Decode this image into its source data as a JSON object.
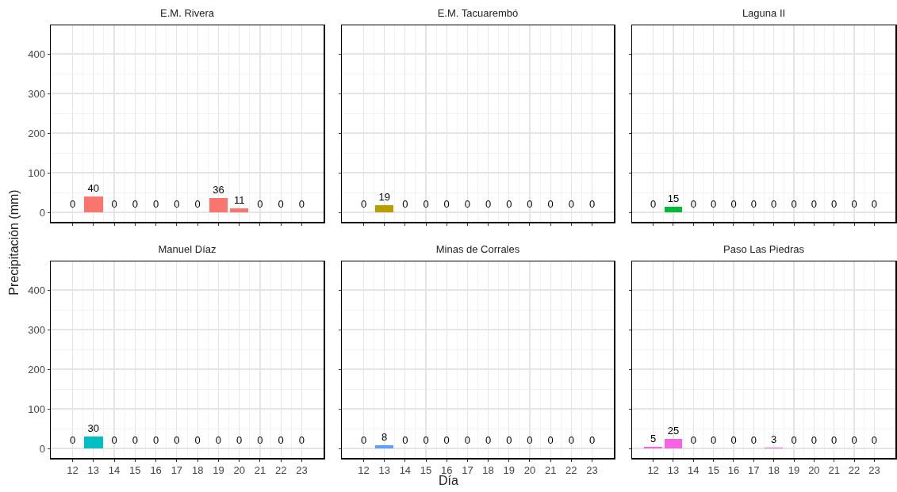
{
  "chart_data": [
    {
      "type": "bar",
      "title": "E.M. Rivera",
      "ylabel": "Precipitación (mm)",
      "x": [
        12,
        13,
        14,
        15,
        16,
        17,
        18,
        19,
        20,
        21,
        22,
        23
      ],
      "values": [
        0,
        40,
        0,
        0,
        0,
        0,
        0,
        36,
        11,
        0,
        0,
        0
      ],
      "color": "#f8766d",
      "xlim": [
        10.95,
        24.05
      ],
      "xticks": [
        12,
        13,
        14,
        15,
        16,
        17,
        18,
        19,
        20,
        21,
        22,
        23
      ],
      "ylim": [
        -24,
        472
      ],
      "yticks": [
        0,
        100,
        200,
        300,
        400
      ],
      "grid": true,
      "data_labels": true,
      "tick_labels": "y"
    },
    {
      "type": "bar",
      "title": "E.M. Tacuarembó",
      "x": [
        12,
        13,
        14,
        15,
        16,
        17,
        18,
        19,
        20,
        21,
        22,
        23
      ],
      "values": [
        0,
        19,
        0,
        0,
        0,
        0,
        0,
        0,
        0,
        0,
        0,
        0
      ],
      "color": "#b79f00",
      "xlim": [
        10.95,
        24.05
      ],
      "xticks": [
        12,
        13,
        14,
        15,
        16,
        17,
        18,
        19,
        20,
        21,
        22,
        23
      ],
      "ylim": [
        -24,
        472
      ],
      "yticks": [
        0,
        100,
        200,
        300,
        400
      ],
      "grid": true,
      "data_labels": true,
      "tick_labels": false
    },
    {
      "type": "bar",
      "title": "Laguna II",
      "x": [
        12,
        13,
        14,
        15,
        16,
        17,
        18,
        19,
        20,
        21,
        22,
        23
      ],
      "values": [
        0,
        15,
        0,
        0,
        0,
        0,
        0,
        0,
        0,
        0,
        0,
        0
      ],
      "color": "#00ba38",
      "xlim": [
        10.95,
        24.05
      ],
      "xticks": [
        12,
        13,
        14,
        15,
        16,
        17,
        18,
        19,
        20,
        21,
        22,
        23
      ],
      "ylim": [
        -24,
        472
      ],
      "yticks": [
        0,
        100,
        200,
        300,
        400
      ],
      "grid": true,
      "data_labels": true,
      "tick_labels": false
    },
    {
      "type": "bar",
      "title": "Manuel Díaz",
      "x": [
        12,
        13,
        14,
        15,
        16,
        17,
        18,
        19,
        20,
        21,
        22,
        23
      ],
      "values": [
        0,
        30,
        0,
        0,
        0,
        0,
        0,
        0,
        0,
        0,
        0,
        0
      ],
      "color": "#00bfc4",
      "xlim": [
        10.95,
        24.05
      ],
      "xticks": [
        12,
        13,
        14,
        15,
        16,
        17,
        18,
        19,
        20,
        21,
        22,
        23
      ],
      "ylim": [
        -24,
        472
      ],
      "yticks": [
        0,
        100,
        200,
        300,
        400
      ],
      "grid": true,
      "data_labels": true
    },
    {
      "type": "bar",
      "title": "Minas de Corrales",
      "xlabel": "Día",
      "x": [
        12,
        13,
        14,
        15,
        16,
        17,
        18,
        19,
        20,
        21,
        22,
        23
      ],
      "values": [
        0,
        8,
        0,
        0,
        0,
        0,
        0,
        0,
        0,
        0,
        0,
        0
      ],
      "color": "#619cff",
      "xlim": [
        10.95,
        24.05
      ],
      "xticks": [
        12,
        13,
        14,
        15,
        16,
        17,
        18,
        19,
        20,
        21,
        22,
        23
      ],
      "ylim": [
        -24,
        472
      ],
      "yticks": [
        0,
        100,
        200,
        300,
        400
      ],
      "grid": true,
      "data_labels": true,
      "tick_labels": "x"
    },
    {
      "type": "bar",
      "title": "Paso Las Piedras",
      "x": [
        12,
        13,
        14,
        15,
        16,
        17,
        18,
        19,
        20,
        21,
        22,
        23
      ],
      "values": [
        5,
        25,
        0,
        0,
        0,
        0,
        3,
        0,
        0,
        0,
        0,
        0
      ],
      "color": "#f564e3",
      "xlim": [
        10.95,
        24.05
      ],
      "xticks": [
        12,
        13,
        14,
        15,
        16,
        17,
        18,
        19,
        20,
        21,
        22,
        23
      ],
      "ylim": [
        -24,
        472
      ],
      "yticks": [
        0,
        100,
        200,
        300,
        400
      ],
      "grid": true,
      "data_labels": true,
      "tick_labels": "x"
    }
  ]
}
